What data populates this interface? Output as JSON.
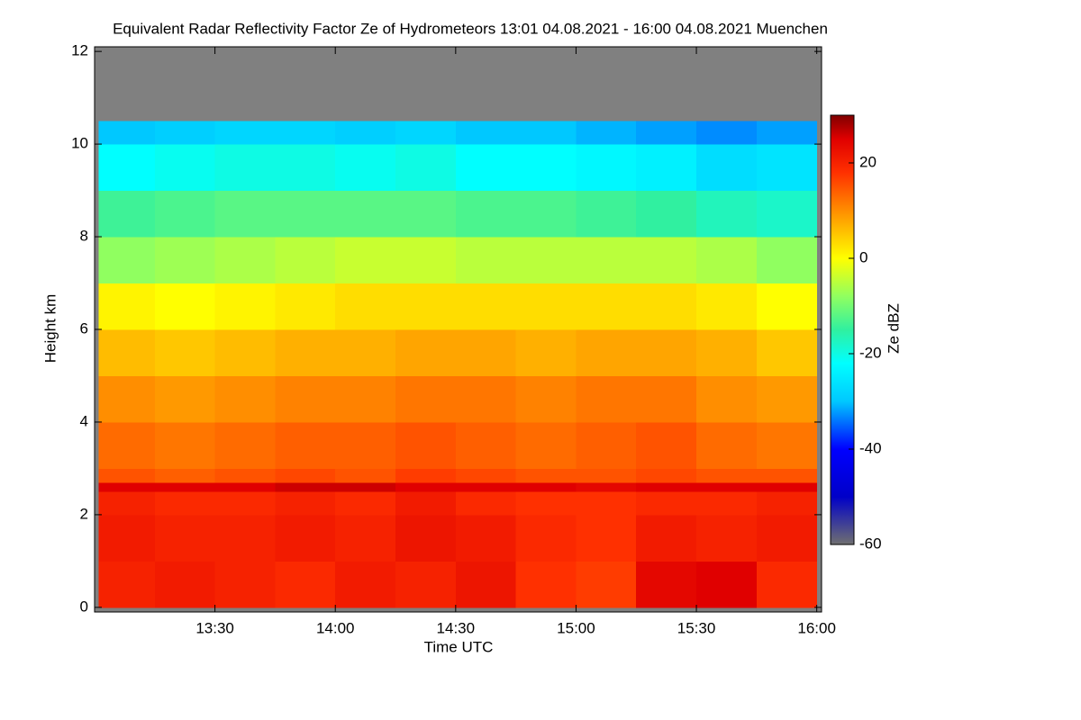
{
  "chart_data": {
    "type": "heatmap",
    "title": "Equivalent Radar Reflectivity Factor Ze of Hydrometeors   13:01 04.08.2021 - 16:00 04.08.2021 Muenchen",
    "xlabel": "Time UTC",
    "ylabel": "Height km",
    "colorbar_label": "Ze dBZ",
    "xlim": [
      13.0,
      16.02
    ],
    "xticks": [
      {
        "value": 13.5,
        "label": "13:30"
      },
      {
        "value": 14.0,
        "label": "14:00"
      },
      {
        "value": 14.5,
        "label": "14:30"
      },
      {
        "value": 15.0,
        "label": "15:00"
      },
      {
        "value": 15.5,
        "label": "15:30"
      },
      {
        "value": 16.0,
        "label": "16:00"
      }
    ],
    "ylim": [
      -0.1,
      12.1
    ],
    "yticks": [
      0,
      2,
      4,
      6,
      8,
      10,
      12
    ],
    "zlim": [
      -60,
      30
    ],
    "zticks": [
      -60,
      -40,
      -20,
      0,
      20
    ],
    "no_data_color": "#808080",
    "colormap": [
      {
        "value": -60,
        "color": "#707070"
      },
      {
        "value": -50,
        "color": "#0000c8"
      },
      {
        "value": -40,
        "color": "#0000ff"
      },
      {
        "value": -30,
        "color": "#00c8ff"
      },
      {
        "value": -22,
        "color": "#00ffff"
      },
      {
        "value": -15,
        "color": "#30f0a0"
      },
      {
        "value": -8,
        "color": "#90ff60"
      },
      {
        "value": 0,
        "color": "#ffff00"
      },
      {
        "value": 8,
        "color": "#ffa500"
      },
      {
        "value": 18,
        "color": "#ff3000"
      },
      {
        "value": 25,
        "color": "#e00000"
      },
      {
        "value": 30,
        "color": "#800000"
      }
    ],
    "xbins": [
      13.0167,
      13.25,
      13.5,
      13.75,
      14.0,
      14.25,
      14.5,
      14.75,
      15.0,
      15.25,
      15.5,
      15.75,
      16.0
    ],
    "ybins": [
      0,
      1,
      2,
      2.5,
      2.7,
      3,
      4,
      5,
      6,
      7,
      8,
      9,
      10,
      10.5
    ],
    "z": [
      [
        20,
        21,
        20,
        19,
        21,
        20,
        22,
        18,
        17,
        24,
        25,
        19
      ],
      [
        21,
        20,
        20,
        21,
        20,
        22,
        21,
        19,
        18,
        21,
        20,
        21
      ],
      [
        20,
        19,
        19,
        20,
        19,
        21,
        19,
        18,
        18,
        19,
        19,
        20
      ],
      [
        25,
        25,
        25,
        26,
        26,
        25,
        25,
        25,
        24,
        25,
        25,
        25
      ],
      [
        15,
        14,
        15,
        16,
        15,
        17,
        16,
        15,
        15,
        16,
        15,
        15
      ],
      [
        13,
        12,
        13,
        14,
        14,
        15,
        14,
        13,
        14,
        15,
        13,
        12
      ],
      [
        10,
        9,
        10,
        11,
        11,
        12,
        12,
        11,
        12,
        12,
        10,
        9
      ],
      [
        6,
        5,
        6,
        7,
        7,
        8,
        8,
        7,
        8,
        8,
        7,
        5
      ],
      [
        1,
        0,
        1,
        2,
        3,
        3,
        3,
        3,
        3,
        3,
        2,
        0
      ],
      [
        -8,
        -7,
        -6,
        -5,
        -4,
        -4,
        -5,
        -5,
        -5,
        -5,
        -6,
        -8
      ],
      [
        -14,
        -13,
        -12,
        -12,
        -12,
        -12,
        -13,
        -13,
        -14,
        -15,
        -17,
        -18
      ],
      [
        -22,
        -21,
        -20,
        -20,
        -21,
        -20,
        -22,
        -22,
        -23,
        -24,
        -27,
        -26
      ],
      [
        -30,
        -29,
        -28,
        -28,
        -29,
        -28,
        -30,
        -30,
        -31,
        -32,
        -33,
        -32
      ]
    ]
  }
}
